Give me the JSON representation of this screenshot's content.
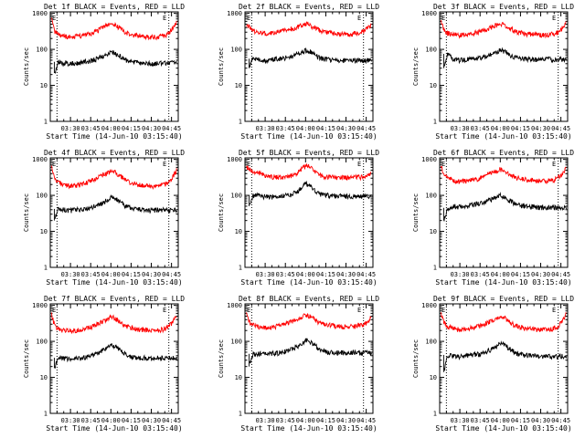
{
  "chart_data": [
    {
      "type": "line",
      "title": "Det 1f BLACK = Events, RED = LLD",
      "xlabel": "Start Time (14-Jun-10 03:15:40)",
      "ylabel": "Counts/sec",
      "x_tick_labels": [
        "03:30",
        "03:45",
        "04:00",
        "04:15",
        "04:30",
        "04:45"
      ],
      "y_tick_labels": [
        "1",
        "10",
        "100",
        "1000"
      ],
      "y_scale": "log",
      "ylim": [
        1,
        1100
      ],
      "xlim_minutes": [
        0,
        95
      ],
      "corner_markers": [
        "E",
        "E"
      ],
      "vlines_minutes": [
        5,
        88
      ],
      "x": [
        1,
        3,
        6,
        10,
        15,
        20,
        25,
        30,
        35,
        40,
        43,
        45,
        48,
        50,
        53,
        56,
        60,
        65,
        70,
        75,
        80,
        85,
        88,
        90,
        92,
        94
      ],
      "series": [
        {
          "name": "BLACK",
          "color": "#000000",
          "values": [
            null,
            22,
            45,
            42,
            40,
            42,
            45,
            48,
            55,
            68,
            78,
            86,
            80,
            72,
            60,
            50,
            45,
            43,
            42,
            40,
            42,
            41,
            40,
            42,
            41,
            40
          ]
        },
        {
          "name": "RED",
          "color": "#ff0000",
          "values": [
            650,
            330,
            250,
            230,
            220,
            230,
            250,
            280,
            330,
            420,
            480,
            520,
            490,
            430,
            360,
            300,
            260,
            240,
            230,
            220,
            225,
            240,
            280,
            340,
            430,
            560
          ]
        }
      ]
    },
    {
      "type": "line",
      "title": "Det 2f BLACK = Events, RED = LLD",
      "xlabel": "Start Time (14-Jun-10 03:15:40)",
      "ylabel": "Counts/sec",
      "x_tick_labels": [
        "03:30",
        "03:45",
        "04:00",
        "04:15",
        "04:30",
        "04:45"
      ],
      "y_tick_labels": [
        "1",
        "10",
        "100",
        "1000"
      ],
      "y_scale": "log",
      "ylim": [
        1,
        1100
      ],
      "xlim_minutes": [
        0,
        95
      ],
      "corner_markers": [
        "E",
        "E"
      ],
      "vlines_minutes": [
        5,
        88
      ],
      "x": [
        1,
        3,
        6,
        10,
        15,
        20,
        25,
        30,
        35,
        40,
        43,
        45,
        48,
        50,
        53,
        56,
        60,
        65,
        70,
        75,
        80,
        85,
        88,
        90,
        92,
        94
      ],
      "series": [
        {
          "name": "BLACK",
          "color": "#000000",
          "values": [
            null,
            30,
            55,
            52,
            50,
            52,
            55,
            58,
            65,
            78,
            88,
            95,
            88,
            80,
            68,
            58,
            53,
            51,
            50,
            48,
            50,
            49,
            48,
            50,
            49,
            48
          ]
        },
        {
          "name": "RED",
          "color": "#ff0000",
          "values": [
            500,
            420,
            340,
            300,
            280,
            290,
            310,
            340,
            380,
            440,
            480,
            510,
            480,
            430,
            380,
            330,
            300,
            280,
            270,
            265,
            270,
            290,
            320,
            360,
            420,
            520
          ]
        }
      ]
    },
    {
      "type": "line",
      "title": "Det 3f BLACK = Events, RED = LLD",
      "xlabel": "Start Time (14-Jun-10 03:15:40)",
      "ylabel": "Counts/sec",
      "x_tick_labels": [
        "03:30",
        "03:45",
        "04:00",
        "04:15",
        "04:30",
        "04:45"
      ],
      "y_tick_labels": [
        "1",
        "10",
        "100",
        "1000"
      ],
      "y_scale": "log",
      "ylim": [
        1,
        1100
      ],
      "xlim_minutes": [
        0,
        95
      ],
      "corner_markers": [
        "E",
        "E"
      ],
      "vlines_minutes": [
        5,
        88
      ],
      "x": [
        1,
        3,
        6,
        10,
        15,
        20,
        25,
        30,
        35,
        40,
        43,
        45,
        48,
        50,
        53,
        56,
        60,
        65,
        70,
        75,
        80,
        85,
        88,
        90,
        92,
        94
      ],
      "series": [
        {
          "name": "BLACK",
          "color": "#000000",
          "values": [
            null,
            30,
            75,
            55,
            50,
            52,
            55,
            58,
            65,
            78,
            88,
            95,
            88,
            80,
            68,
            60,
            56,
            54,
            53,
            52,
            53,
            52,
            51,
            53,
            52,
            51
          ]
        },
        {
          "name": "RED",
          "color": "#ff0000",
          "values": [
            600,
            350,
            280,
            260,
            250,
            260,
            280,
            310,
            360,
            440,
            490,
            520,
            490,
            430,
            370,
            320,
            290,
            270,
            260,
            250,
            255,
            270,
            300,
            350,
            430,
            560
          ]
        }
      ]
    },
    {
      "type": "line",
      "title": "Det 4f BLACK = Events, RED = LLD",
      "xlabel": "Start Time (14-Jun-10 03:15:40)",
      "ylabel": "Counts/sec",
      "x_tick_labels": [
        "03:30",
        "03:45",
        "04:00",
        "04:15",
        "04:30",
        "04:45"
      ],
      "y_tick_labels": [
        "1",
        "10",
        "100",
        "1000"
      ],
      "y_scale": "log",
      "ylim": [
        1,
        1100
      ],
      "xlim_minutes": [
        0,
        95
      ],
      "corner_markers": [
        "E",
        "E"
      ],
      "vlines_minutes": [
        5,
        88
      ],
      "x": [
        1,
        3,
        6,
        10,
        15,
        20,
        25,
        30,
        35,
        40,
        43,
        45,
        48,
        50,
        53,
        56,
        60,
        65,
        70,
        75,
        80,
        85,
        88,
        90,
        92,
        94
      ],
      "series": [
        {
          "name": "BLACK",
          "color": "#000000",
          "values": [
            null,
            20,
            42,
            40,
            38,
            40,
            42,
            46,
            52,
            65,
            78,
            92,
            85,
            75,
            62,
            50,
            44,
            42,
            40,
            38,
            40,
            39,
            38,
            40,
            39,
            38
          ]
        },
        {
          "name": "RED",
          "color": "#ff0000",
          "values": [
            700,
            300,
            230,
            200,
            180,
            190,
            210,
            250,
            300,
            380,
            430,
            470,
            440,
            380,
            320,
            260,
            220,
            200,
            190,
            180,
            185,
            200,
            240,
            300,
            380,
            520
          ]
        }
      ]
    },
    {
      "type": "line",
      "title": "Det 5f BLACK = Events, RED = LLD",
      "xlabel": "Start Time (14-Jun-10 03:15:40)",
      "ylabel": "Counts/sec",
      "x_tick_labels": [
        "03:30",
        "03:45",
        "04:00",
        "04:15",
        "04:30",
        "04:45"
      ],
      "y_tick_labels": [
        "1",
        "10",
        "100",
        "1000"
      ],
      "y_scale": "log",
      "ylim": [
        1,
        1100
      ],
      "xlim_minutes": [
        0,
        95
      ],
      "corner_markers": [
        "E",
        "E"
      ],
      "vlines_minutes": [
        5,
        88
      ],
      "x": [
        1,
        3,
        6,
        10,
        15,
        20,
        25,
        30,
        35,
        40,
        43,
        45,
        48,
        50,
        53,
        56,
        60,
        65,
        70,
        75,
        80,
        85,
        88,
        90,
        92,
        94
      ],
      "series": [
        {
          "name": "BLACK",
          "color": "#000000",
          "values": [
            null,
            50,
            100,
            98,
            92,
            90,
            92,
            98,
            110,
            140,
            180,
            210,
            190,
            160,
            130,
            110,
            102,
            98,
            96,
            94,
            95,
            96,
            95,
            97,
            96,
            95
          ]
        },
        {
          "name": "RED",
          "color": "#ff0000",
          "values": [
            620,
            560,
            480,
            420,
            360,
            330,
            320,
            330,
            360,
            450,
            560,
            660,
            620,
            520,
            420,
            360,
            330,
            320,
            315,
            310,
            315,
            320,
            330,
            340,
            360,
            400
          ]
        }
      ]
    },
    {
      "type": "line",
      "title": "Det 6f BLACK = Events, RED = LLD",
      "xlabel": "Start Time (14-Jun-10 03:15:40)",
      "ylabel": "Counts/sec",
      "x_tick_labels": [
        "03:30",
        "03:45",
        "04:00",
        "04:15",
        "04:30",
        "04:45"
      ],
      "y_tick_labels": [
        "1",
        "10",
        "100",
        "1000"
      ],
      "y_scale": "log",
      "ylim": [
        1,
        1100
      ],
      "xlim_minutes": [
        0,
        95
      ],
      "corner_markers": [
        "E",
        "E"
      ],
      "vlines_minutes": [
        5,
        88
      ],
      "x": [
        1,
        3,
        6,
        10,
        15,
        20,
        25,
        30,
        35,
        40,
        43,
        45,
        48,
        50,
        53,
        56,
        60,
        65,
        70,
        75,
        80,
        85,
        88,
        90,
        92,
        94
      ],
      "series": [
        {
          "name": "BLACK",
          "color": "#000000",
          "values": [
            null,
            20,
            45,
            50,
            48,
            50,
            55,
            60,
            68,
            82,
            92,
            98,
            90,
            80,
            68,
            58,
            52,
            50,
            48,
            46,
            47,
            46,
            45,
            47,
            46,
            45
          ]
        },
        {
          "name": "RED",
          "color": "#ff0000",
          "values": [
            650,
            380,
            300,
            260,
            240,
            250,
            270,
            300,
            360,
            440,
            500,
            530,
            500,
            440,
            370,
            320,
            290,
            270,
            260,
            250,
            255,
            270,
            310,
            370,
            460,
            620
          ]
        }
      ]
    },
    {
      "type": "line",
      "title": "Det 7f BLACK = Events, RED = LLD",
      "xlabel": "Start Time (14-Jun-10 03:15:40)",
      "ylabel": "Counts/sec",
      "x_tick_labels": [
        "03:30",
        "03:45",
        "04:00",
        "04:15",
        "04:30",
        "04:45"
      ],
      "y_tick_labels": [
        "1",
        "10",
        "100",
        "1000"
      ],
      "y_scale": "log",
      "ylim": [
        1,
        1100
      ],
      "xlim_minutes": [
        0,
        95
      ],
      "corner_markers": [
        "E",
        "E"
      ],
      "vlines_minutes": [
        5,
        88
      ],
      "x": [
        1,
        3,
        6,
        10,
        15,
        20,
        25,
        30,
        35,
        40,
        43,
        45,
        48,
        50,
        53,
        56,
        60,
        65,
        70,
        75,
        80,
        85,
        88,
        90,
        92,
        94
      ],
      "series": [
        {
          "name": "BLACK",
          "color": "#000000",
          "values": [
            null,
            18,
            35,
            34,
            33,
            34,
            36,
            40,
            48,
            60,
            70,
            78,
            72,
            64,
            52,
            44,
            38,
            36,
            35,
            34,
            35,
            34,
            34,
            35,
            34,
            34
          ]
        },
        {
          "name": "RED",
          "color": "#ff0000",
          "values": [
            560,
            300,
            220,
            200,
            190,
            200,
            220,
            250,
            300,
            380,
            440,
            480,
            450,
            390,
            320,
            270,
            240,
            220,
            210,
            200,
            205,
            220,
            260,
            320,
            400,
            520
          ]
        }
      ]
    },
    {
      "type": "line",
      "title": "Det 8f BLACK = Events, RED = LLD",
      "xlabel": "Start Time (14-Jun-10 03:15:40)",
      "ylabel": "Counts/sec",
      "x_tick_labels": [
        "03:30",
        "03:45",
        "04:00",
        "04:15",
        "04:30",
        "04:45"
      ],
      "y_tick_labels": [
        "1",
        "10",
        "100",
        "1000"
      ],
      "y_scale": "log",
      "ylim": [
        1,
        1100
      ],
      "xlim_minutes": [
        0,
        95
      ],
      "corner_markers": [
        "E",
        "E"
      ],
      "vlines_minutes": [
        5,
        88
      ],
      "x": [
        1,
        3,
        6,
        10,
        15,
        20,
        25,
        30,
        35,
        40,
        43,
        45,
        48,
        50,
        53,
        56,
        60,
        65,
        70,
        75,
        80,
        85,
        88,
        90,
        92,
        94
      ],
      "series": [
        {
          "name": "BLACK",
          "color": "#000000",
          "values": [
            null,
            20,
            45,
            46,
            45,
            46,
            48,
            52,
            60,
            76,
            92,
            110,
            100,
            86,
            70,
            58,
            52,
            50,
            49,
            48,
            49,
            48,
            47,
            49,
            48,
            47
          ]
        },
        {
          "name": "RED",
          "color": "#ff0000",
          "values": [
            560,
            360,
            280,
            250,
            240,
            250,
            270,
            300,
            350,
            430,
            490,
            530,
            500,
            440,
            370,
            320,
            290,
            270,
            260,
            255,
            260,
            270,
            290,
            330,
            380,
            460
          ]
        }
      ]
    },
    {
      "type": "line",
      "title": "Det 9f BLACK = Events, RED = LLD",
      "xlabel": "Start Time (14-Jun-10 03:15:40)",
      "ylabel": "Counts/sec",
      "x_tick_labels": [
        "03:30",
        "03:45",
        "04:00",
        "04:15",
        "04:30",
        "04:45"
      ],
      "y_tick_labels": [
        "1",
        "10",
        "100",
        "1000"
      ],
      "y_scale": "log",
      "ylim": [
        1,
        1100
      ],
      "xlim_minutes": [
        0,
        95
      ],
      "corner_markers": [
        "E",
        "E"
      ],
      "vlines_minutes": [
        5,
        88
      ],
      "x": [
        1,
        3,
        6,
        10,
        15,
        20,
        25,
        30,
        35,
        40,
        43,
        45,
        48,
        50,
        53,
        56,
        60,
        65,
        70,
        75,
        80,
        85,
        88,
        90,
        92,
        94
      ],
      "series": [
        {
          "name": "BLACK",
          "color": "#000000",
          "values": [
            null,
            14,
            42,
            40,
            38,
            40,
            42,
            45,
            52,
            66,
            78,
            88,
            80,
            70,
            58,
            48,
            43,
            41,
            40,
            38,
            39,
            38,
            37,
            39,
            38,
            37
          ]
        },
        {
          "name": "RED",
          "color": "#ff0000",
          "values": [
            620,
            340,
            260,
            230,
            210,
            220,
            240,
            270,
            320,
            400,
            450,
            490,
            460,
            400,
            330,
            280,
            250,
            230,
            220,
            210,
            215,
            230,
            270,
            330,
            420,
            580
          ]
        }
      ]
    }
  ]
}
